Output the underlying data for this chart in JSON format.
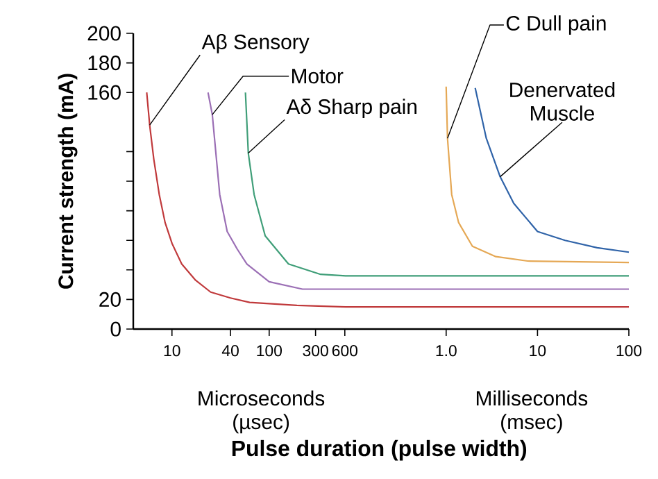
{
  "chart_data": [
    {
      "type": "line",
      "xlabel": "Microseconds (µsec)",
      "ylabel": "Current strength (mA)",
      "log": "x",
      "annotations": [
        "Pulse duration (pulse width)"
      ],
      "xlim": [
        4,
        2000
      ],
      "ylim": [
        0,
        200
      ],
      "xticks": [
        10,
        40,
        100,
        300,
        600
      ],
      "yticks": [
        0,
        20,
        {
          "value": 40,
          "label": null
        },
        {
          "value": 60,
          "label": null
        },
        {
          "value": 80,
          "label": null
        },
        {
          "value": 100,
          "label": null
        },
        {
          "value": 120,
          "label": null
        },
        160,
        180,
        200
      ],
      "series": [
        {
          "name": "Aβ Sensory",
          "color": "#c0393b",
          "x": [
            5.5,
            5.9,
            6.5,
            7.4,
            8.5,
            10,
            12.6,
            17.5,
            25,
            40,
            63,
            193,
            611,
            2000
          ],
          "values": [
            160,
            138,
            115,
            91,
            72,
            58,
            44,
            33,
            25,
            21,
            18,
            16,
            15,
            15
          ]
        },
        {
          "name": "Motor",
          "color": "#9b6fb5",
          "x": [
            23.5,
            26,
            31,
            37,
            47,
            59,
            100,
            220,
            611,
            2000
          ],
          "values": [
            160,
            145,
            91,
            66,
            54,
            44,
            32,
            27,
            27,
            27
          ]
        },
        {
          "name": "Aδ Sharp pain",
          "color": "#3f9e78",
          "x": [
            57,
            61,
            70,
            91,
            158,
            338,
            611,
            2000
          ],
          "values": [
            160,
            119,
            91,
            63,
            44,
            37,
            36,
            36
          ]
        }
      ]
    },
    {
      "type": "line",
      "xlabel": "Milliseconds (msec)",
      "log": "x",
      "tick_labels": "x",
      "xlim": [
        0.28,
        100
      ],
      "ylim": [
        0,
        200
      ],
      "xticks": [
        {
          "value": 1,
          "label": "1.0"
        },
        10,
        100
      ],
      "series": [
        {
          "color": "#c0393b",
          "x": [
            0.28,
            100
          ],
          "values": [
            15,
            15
          ]
        },
        {
          "color": "#9b6fb5",
          "x": [
            0.28,
            100
          ],
          "values": [
            27,
            27
          ]
        },
        {
          "color": "#3f9e78",
          "x": [
            0.28,
            100
          ],
          "values": [
            36,
            36
          ]
        },
        {
          "name": "C Dull pain",
          "color": "#e5a855",
          "x": [
            1.0,
            1.035,
            1.15,
            1.37,
            1.94,
            3.5,
            7.8,
            100
          ],
          "values": [
            164,
            129,
            91,
            72,
            56,
            49,
            46,
            45
          ]
        },
        {
          "name": "Denervated Muscle",
          "color": "#2f63a8",
          "x": [
            2.08,
            2.75,
            3.9,
            5.5,
            10,
            20,
            45,
            100
          ],
          "values": [
            163,
            129,
            103,
            85,
            66,
            60,
            55,
            52
          ]
        }
      ]
    }
  ]
}
